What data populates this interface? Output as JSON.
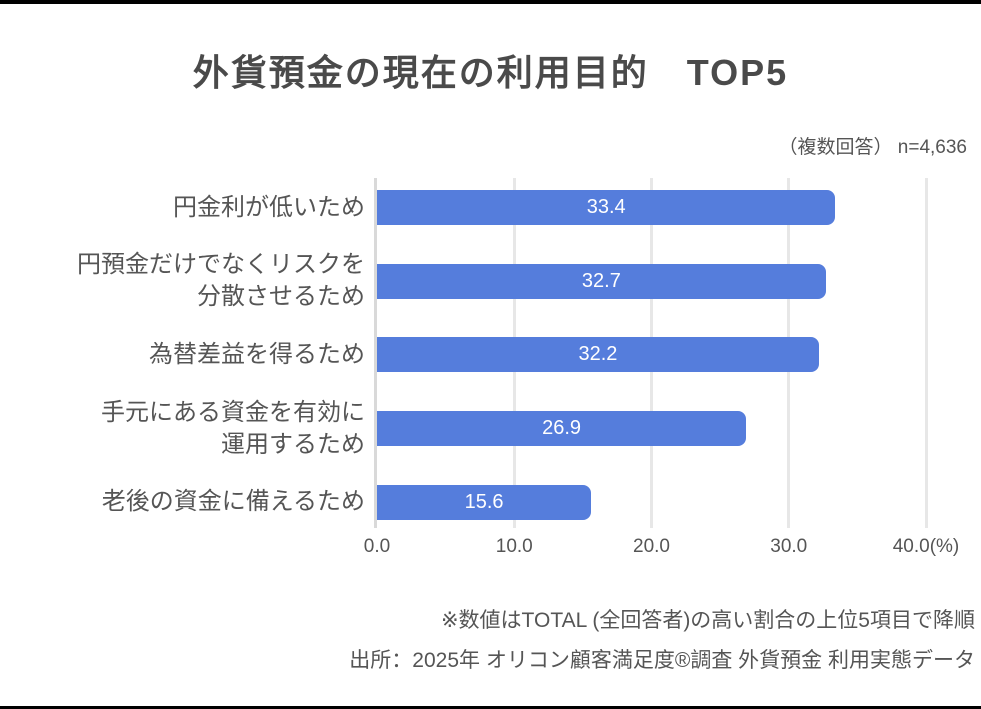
{
  "header": {
    "title": "外貨預金の現在の利用目的　TOP5",
    "annotation": "（複数回答） n=4,636"
  },
  "footer": {
    "footnote": "※数値はTOTAL (全回答者)の高い割合の上位5項目で降順",
    "source": "出所：2025年 オリコン顧客満足度®調査 外貨預金 利用実態データ"
  },
  "chart_data": {
    "type": "bar",
    "orientation": "horizontal",
    "title": "外貨預金の現在の利用目的　TOP5",
    "subtitle": "（複数回答） n=4,636",
    "categories": [
      "円金利が低いため",
      "円預金だけでなくリスクを分散させるため",
      "為替差益を得るため",
      "手元にある資金を有効に運用するため",
      "老後の資金に備えるため"
    ],
    "category_lines": [
      [
        "円金利が低いため"
      ],
      [
        "円預金だけでなくリスクを",
        "分散させるため"
      ],
      [
        "為替差益を得るため"
      ],
      [
        "手元にある資金を有効に",
        "運用するため"
      ],
      [
        "老後の資金に備えるため"
      ]
    ],
    "values": [
      33.4,
      32.7,
      32.2,
      26.9,
      15.6
    ],
    "x_ticks": [
      "0.0",
      "10.0",
      "20.0",
      "30.0",
      "40.0(%)"
    ],
    "xlim": [
      0,
      40
    ],
    "unit": "%",
    "grid": true,
    "legend": false,
    "value_labels_inside_bars": true,
    "sort": "descending",
    "colors": {
      "bar": "#557ddc",
      "bar_value_text": "#ffffff",
      "gridline": "#e7e7e7",
      "axis_line": "#d9d9d9",
      "title_text": "#4a4a4a",
      "label_text": "#555555"
    }
  }
}
